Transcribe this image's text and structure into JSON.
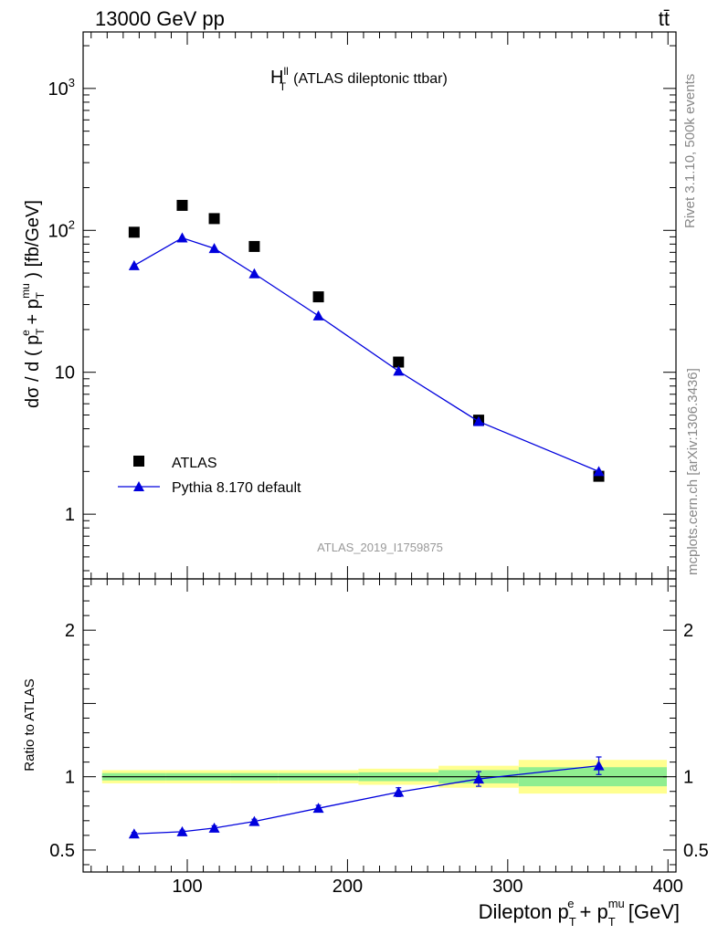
{
  "header": {
    "left": "13000 GeV pp",
    "right": "tt̄"
  },
  "side_labels": {
    "rivet": "Rivet 3.1.10,  500k events",
    "mcplots": "mcplots.cern.ch [arXiv:1306.3436]"
  },
  "chart_data": [
    {
      "panel": "main",
      "type": "scatter",
      "title_base": "H",
      "title_sup": "ll",
      "title_sub": "T",
      "title_rest": "(ATLAS dileptonic ttbar)",
      "ylabel": "dσ / d ( p_T^e + p_T^mu ) [fb/GeV]",
      "yscale": "log",
      "ylim": [
        0.35,
        2500
      ],
      "xlim": [
        35,
        405
      ],
      "yticks": [
        1,
        10,
        100,
        1000
      ],
      "ytick_labels": [
        "1",
        "10",
        "10^2",
        "10^3"
      ],
      "watermark": "ATLAS_2019_I1759875",
      "legend_position": "lower-left",
      "series": [
        {
          "name": "ATLAS",
          "marker": "square",
          "color": "#000000",
          "x": [
            60,
            90,
            110,
            135,
            175,
            225,
            275,
            350
          ],
          "y": [
            97,
            150,
            121,
            77,
            34,
            11.8,
            4.6,
            1.85
          ]
        },
        {
          "name": "Pythia 8.170 default",
          "marker": "triangle",
          "color": "#0000dd",
          "x": [
            60,
            90,
            110,
            135,
            175,
            225,
            275,
            350
          ],
          "y": [
            56.5,
            88.5,
            74.5,
            49.5,
            25,
            10.2,
            4.5,
            2.0
          ],
          "yerr": [
            0.6,
            0.9,
            0.8,
            0.6,
            0.3,
            0.15,
            0.12,
            0.12
          ]
        }
      ]
    },
    {
      "panel": "ratio",
      "type": "line",
      "ylabel": "Ratio to ATLAS",
      "xlabel_base": "Dilepton p",
      "xlabel_rest": "[GeV]",
      "ylim": [
        0.35,
        2.35
      ],
      "xlim": [
        35,
        405
      ],
      "yticks": [
        0.5,
        1,
        2
      ],
      "ytick_labels": [
        "0.5",
        "1",
        "2"
      ],
      "xticks": [
        100,
        200,
        300,
        400
      ],
      "xtick_labels": [
        "100",
        "200",
        "300",
        "400"
      ],
      "bands": {
        "bins": [
          [
            40,
            80
          ],
          [
            80,
            100
          ],
          [
            100,
            120
          ],
          [
            120,
            150
          ],
          [
            150,
            200
          ],
          [
            200,
            250
          ],
          [
            250,
            300
          ],
          [
            300,
            400
          ]
        ],
        "green": [
          0.025,
          0.025,
          0.025,
          0.025,
          0.025,
          0.03,
          0.045,
          0.065
        ],
        "yellow": [
          0.045,
          0.045,
          0.045,
          0.045,
          0.045,
          0.055,
          0.075,
          0.115
        ],
        "green_color": "#90ee90",
        "yellow_color": "#ffff90"
      },
      "series": [
        {
          "name": "Pythia 8.170 default",
          "color": "#0000dd",
          "x": [
            60,
            90,
            110,
            135,
            175,
            225,
            275,
            350
          ],
          "y": [
            0.61,
            0.625,
            0.65,
            0.695,
            0.785,
            0.895,
            0.985,
            1.075
          ],
          "yerr": [
            0.01,
            0.01,
            0.015,
            0.015,
            0.02,
            0.03,
            0.05,
            0.06
          ]
        }
      ]
    }
  ]
}
